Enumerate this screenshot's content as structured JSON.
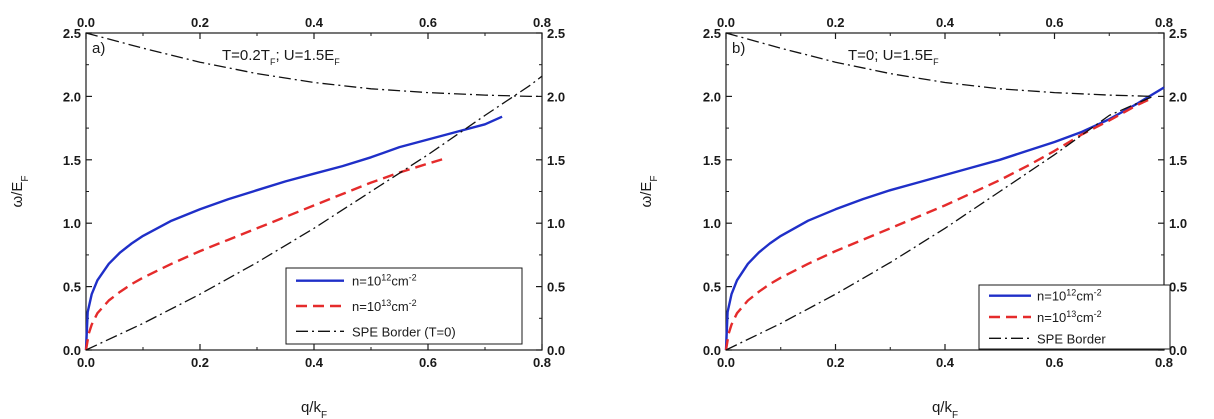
{
  "chart_data": [
    {
      "type": "line",
      "panel_label": "a)",
      "annotation": {
        "pre": "T=0.2T",
        "sub1": "F",
        "mid": "; U=1.5E",
        "sub2": "F"
      },
      "xlabel": {
        "main": "q/k",
        "sub": "F"
      },
      "ylabel": {
        "main": "ω/E",
        "sub": "F"
      },
      "xlim": [
        0,
        0.8
      ],
      "ylim": [
        0,
        2.5
      ],
      "xticks": [
        "0.0",
        "0.2",
        "0.4",
        "0.6",
        "0.8"
      ],
      "yticks": [
        "0.0",
        "0.5",
        "1.0",
        "1.5",
        "2.0",
        "2.5"
      ],
      "legend_position": "bottom-right",
      "series": [
        {
          "name": "n=10",
          "name_sup": "12",
          "name_unit": "cm",
          "name_unit_sup": "-2",
          "color": "#1f2fc8",
          "style": "solid",
          "x": [
            0,
            0.003,
            0.01,
            0.02,
            0.04,
            0.06,
            0.08,
            0.1,
            0.15,
            0.2,
            0.25,
            0.3,
            0.35,
            0.4,
            0.45,
            0.5,
            0.55,
            0.6,
            0.65,
            0.7,
            0.73
          ],
          "y": [
            0,
            0.3,
            0.44,
            0.55,
            0.68,
            0.77,
            0.84,
            0.9,
            1.02,
            1.11,
            1.19,
            1.26,
            1.33,
            1.39,
            1.45,
            1.52,
            1.6,
            1.66,
            1.72,
            1.78,
            1.84
          ]
        },
        {
          "name": "n=10",
          "name_sup": "13",
          "name_unit": "cm",
          "name_unit_sup": "-2",
          "color": "#e52b2b",
          "style": "dashed",
          "x": [
            0,
            0.005,
            0.01,
            0.02,
            0.04,
            0.06,
            0.08,
            0.1,
            0.15,
            0.2,
            0.25,
            0.3,
            0.35,
            0.4,
            0.45,
            0.5,
            0.55,
            0.6,
            0.63
          ],
          "y": [
            0,
            0.13,
            0.2,
            0.29,
            0.39,
            0.46,
            0.52,
            0.57,
            0.68,
            0.78,
            0.87,
            0.96,
            1.05,
            1.14,
            1.23,
            1.32,
            1.4,
            1.47,
            1.51
          ]
        },
        {
          "name": "SPE Border (T=0)",
          "color": "#111111",
          "style": "dashdot",
          "group": "border",
          "x": [
            0,
            0.1,
            0.2,
            0.3,
            0.4,
            0.5,
            0.6,
            0.7,
            0.78,
            0.8
          ],
          "y": [
            0,
            0.21,
            0.44,
            0.69,
            0.96,
            1.25,
            1.54,
            1.85,
            2.09,
            2.16
          ]
        },
        {
          "name": "",
          "color": "#111111",
          "style": "dashdot",
          "group": "border",
          "in_legend": false,
          "x": [
            0,
            0.1,
            0.2,
            0.3,
            0.4,
            0.5,
            0.6,
            0.7,
            0.78,
            0.8
          ],
          "y": [
            2.5,
            2.38,
            2.27,
            2.18,
            2.11,
            2.06,
            2.03,
            2.01,
            2.0,
            2.0
          ]
        }
      ]
    },
    {
      "type": "line",
      "panel_label": "b)",
      "annotation": {
        "pre": "T=0; U=1.5E",
        "sub1": "F",
        "mid": "",
        "sub2": ""
      },
      "xlabel": {
        "main": "q/k",
        "sub": "F"
      },
      "ylabel": {
        "main": "ω/E",
        "sub": "F"
      },
      "xlim": [
        0,
        0.8
      ],
      "ylim": [
        0,
        2.5
      ],
      "xticks": [
        "0.0",
        "0.2",
        "0.4",
        "0.6",
        "0.8"
      ],
      "yticks": [
        "0.0",
        "0.5",
        "1.0",
        "1.5",
        "2.0",
        "2.5"
      ],
      "legend_position": "bottom-right",
      "series": [
        {
          "name": "n=10",
          "name_sup": "12",
          "name_unit": "cm",
          "name_unit_sup": "-2",
          "color": "#1f2fc8",
          "style": "solid",
          "x": [
            0,
            0.003,
            0.01,
            0.02,
            0.04,
            0.06,
            0.08,
            0.1,
            0.15,
            0.2,
            0.25,
            0.3,
            0.35,
            0.4,
            0.45,
            0.5,
            0.55,
            0.6,
            0.65,
            0.7,
            0.75,
            0.8
          ],
          "y": [
            0,
            0.3,
            0.44,
            0.55,
            0.68,
            0.77,
            0.84,
            0.9,
            1.02,
            1.11,
            1.19,
            1.26,
            1.32,
            1.38,
            1.44,
            1.5,
            1.57,
            1.64,
            1.72,
            1.82,
            1.94,
            2.07
          ]
        },
        {
          "name": "n=10",
          "name_sup": "13",
          "name_unit": "cm",
          "name_unit_sup": "-2",
          "color": "#e52b2b",
          "style": "dashed",
          "x": [
            0,
            0.005,
            0.01,
            0.02,
            0.04,
            0.06,
            0.08,
            0.1,
            0.15,
            0.2,
            0.25,
            0.3,
            0.35,
            0.4,
            0.45,
            0.5,
            0.55,
            0.6,
            0.65,
            0.7,
            0.75,
            0.78
          ],
          "y": [
            0,
            0.13,
            0.2,
            0.29,
            0.39,
            0.46,
            0.52,
            0.57,
            0.68,
            0.78,
            0.87,
            0.96,
            1.05,
            1.14,
            1.24,
            1.34,
            1.45,
            1.57,
            1.7,
            1.81,
            1.93,
            1.99
          ]
        },
        {
          "name": "SPE Border",
          "color": "#111111",
          "style": "dashdot",
          "group": "border",
          "x": [
            0,
            0.1,
            0.2,
            0.3,
            0.4,
            0.5,
            0.6,
            0.7,
            0.78
          ],
          "y": [
            0,
            0.21,
            0.44,
            0.69,
            0.96,
            1.25,
            1.54,
            1.85,
            2.0
          ]
        },
        {
          "name": "",
          "color": "#111111",
          "style": "dashdot",
          "group": "border",
          "in_legend": false,
          "x": [
            0,
            0.1,
            0.2,
            0.3,
            0.4,
            0.5,
            0.6,
            0.7,
            0.78
          ],
          "y": [
            2.5,
            2.38,
            2.27,
            2.18,
            2.11,
            2.06,
            2.03,
            2.01,
            2.0
          ]
        }
      ]
    }
  ]
}
